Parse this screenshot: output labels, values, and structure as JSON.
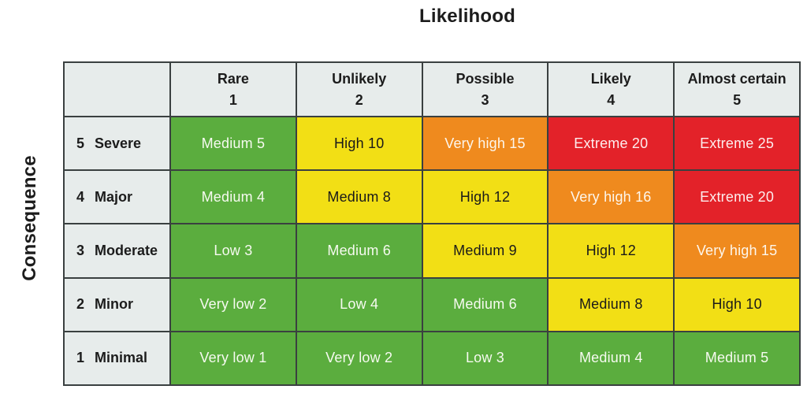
{
  "colors": {
    "border": "#3a4040",
    "header_bg": "#e7eceb",
    "header_text": "#1c1c1c",
    "green": "#5bad3e",
    "yellow": "#f2df15",
    "orange": "#ef8a1e",
    "red": "#e32229",
    "text_on_green": "#f6faf0",
    "text_on_yellow": "#1a1a1a",
    "text_on_orange": "#fdf6ec",
    "text_on_red": "#fdeeee"
  },
  "chart_data": {
    "type": "heatmap",
    "title": "Likelihood",
    "xlabel": "Likelihood",
    "ylabel": "Consequence",
    "x_categories": [
      {
        "label": "Rare",
        "value": "1"
      },
      {
        "label": "Unlikely",
        "value": "2"
      },
      {
        "label": "Possible",
        "value": "3"
      },
      {
        "label": "Likely",
        "value": "4"
      },
      {
        "label": "Almost certain",
        "value": "5"
      }
    ],
    "y_categories": [
      {
        "value": "5",
        "label": "Severe"
      },
      {
        "value": "4",
        "label": "Major"
      },
      {
        "value": "3",
        "label": "Moderate"
      },
      {
        "value": "2",
        "label": "Minor"
      },
      {
        "value": "1",
        "label": "Minimal"
      }
    ],
    "cells": [
      [
        {
          "label": "Medium 5",
          "score": 5,
          "color": "green"
        },
        {
          "label": "High 10",
          "score": 10,
          "color": "yellow"
        },
        {
          "label": "Very high 15",
          "score": 15,
          "color": "orange"
        },
        {
          "label": "Extreme 20",
          "score": 20,
          "color": "red"
        },
        {
          "label": "Extreme 25",
          "score": 25,
          "color": "red"
        }
      ],
      [
        {
          "label": "Medium 4",
          "score": 4,
          "color": "green"
        },
        {
          "label": "Medium 8",
          "score": 8,
          "color": "yellow"
        },
        {
          "label": "High 12",
          "score": 12,
          "color": "yellow"
        },
        {
          "label": "Very high 16",
          "score": 16,
          "color": "orange"
        },
        {
          "label": "Extreme 20",
          "score": 20,
          "color": "red"
        }
      ],
      [
        {
          "label": "Low 3",
          "score": 3,
          "color": "green"
        },
        {
          "label": "Medium 6",
          "score": 6,
          "color": "green"
        },
        {
          "label": "Medium 9",
          "score": 9,
          "color": "yellow"
        },
        {
          "label": "High 12",
          "score": 12,
          "color": "yellow"
        },
        {
          "label": "Very high 15",
          "score": 15,
          "color": "orange"
        }
      ],
      [
        {
          "label": "Very low 2",
          "score": 2,
          "color": "green"
        },
        {
          "label": "Low 4",
          "score": 4,
          "color": "green"
        },
        {
          "label": "Medium 6",
          "score": 6,
          "color": "green"
        },
        {
          "label": "Medium 8",
          "score": 8,
          "color": "yellow"
        },
        {
          "label": "High 10",
          "score": 10,
          "color": "yellow"
        }
      ],
      [
        {
          "label": "Very low 1",
          "score": 1,
          "color": "green"
        },
        {
          "label": "Very low 2",
          "score": 2,
          "color": "green"
        },
        {
          "label": "Low 3",
          "score": 3,
          "color": "green"
        },
        {
          "label": "Medium 4",
          "score": 4,
          "color": "green"
        },
        {
          "label": "Medium 5",
          "score": 5,
          "color": "green"
        }
      ]
    ],
    "legend": "off",
    "grid": "on"
  }
}
